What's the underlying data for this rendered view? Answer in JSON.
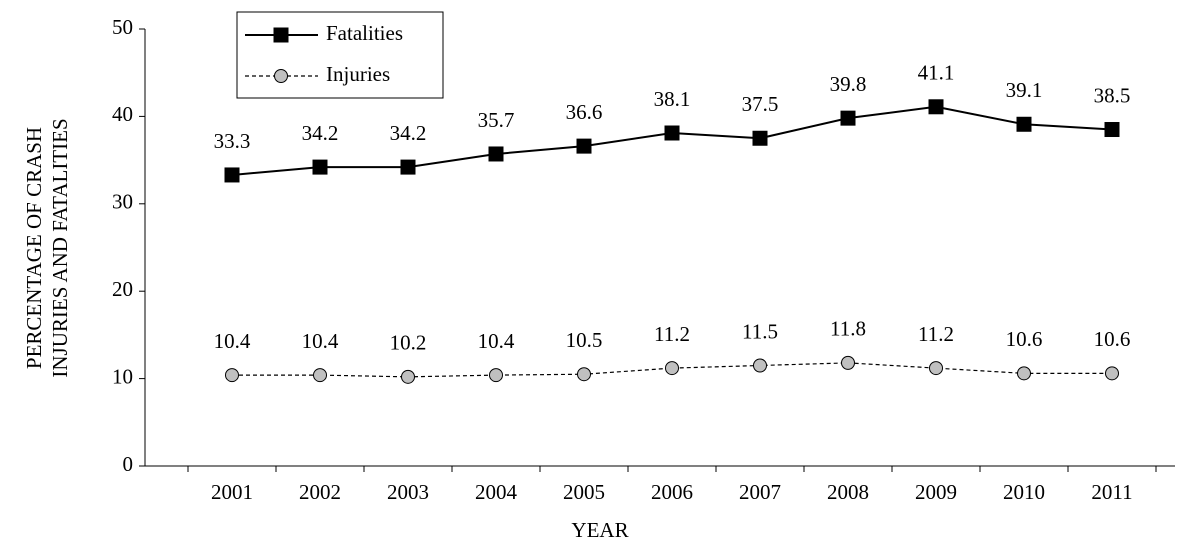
{
  "chart_data": {
    "type": "line",
    "xlabel": "YEAR",
    "ylabel": [
      "PERCENTAGE OF CRASH",
      "INJURIES AND FATALITIES"
    ],
    "categories": [
      "2001",
      "2002",
      "2003",
      "2004",
      "2005",
      "2006",
      "2007",
      "2008",
      "2009",
      "2010",
      "2011"
    ],
    "series": [
      {
        "name": "Fatalities",
        "color": "#000000",
        "marker": "square",
        "marker_fill": "#000000",
        "line_style": "solid",
        "values": [
          33.3,
          34.2,
          34.2,
          35.7,
          36.6,
          38.1,
          37.5,
          39.8,
          41.1,
          39.1,
          38.5
        ]
      },
      {
        "name": "Injuries",
        "color": "#000000",
        "marker": "circle",
        "marker_fill": "#c0c0c0",
        "line_style": "dashed",
        "values": [
          10.4,
          10.4,
          10.2,
          10.4,
          10.5,
          11.2,
          11.5,
          11.8,
          11.2,
          10.6,
          10.6
        ]
      }
    ],
    "ylim": [
      0,
      50
    ],
    "yticks": [
      0,
      10,
      20,
      30,
      40,
      50
    ],
    "grid": false,
    "legend": "upper left",
    "data_labels": true
  }
}
